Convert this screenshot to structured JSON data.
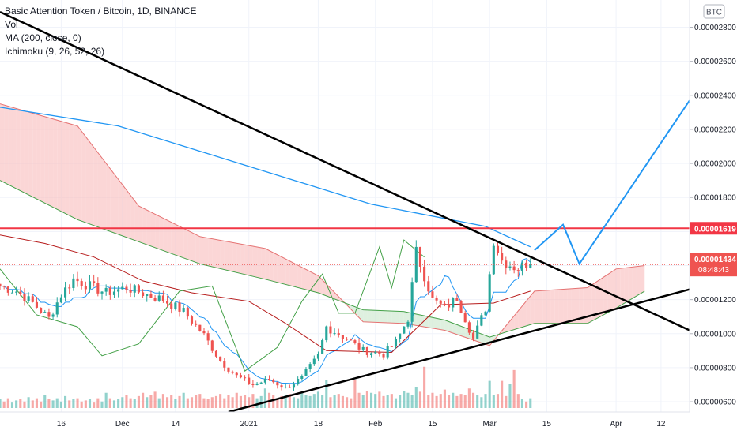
{
  "legend": {
    "symbol": "Basic Attention Token / Bitcoin, 1D, BINANCE",
    "vol": "Vol",
    "ma": "MA (200, close, 0)",
    "ichimoku": "Ichimoku (9, 26, 52, 26)"
  },
  "currency_badge": "BTC",
  "colors": {
    "up": "#26a69a",
    "down": "#ef5350",
    "ma": "#2196f3",
    "conversion": "#2196f3",
    "base": "#b71c1c",
    "lagging": "#43a047",
    "cloud_bear": "#f8bbbb",
    "cloud_bull": "#c8e6c9",
    "resistance": "#f23645",
    "trendline": "#000000",
    "projection": "#2196f3"
  },
  "price_labels": {
    "resistance": "0.00001619",
    "last_price": "0.00001434",
    "countdown": "08:48:43"
  },
  "chart_data": {
    "type": "candlestick",
    "y_axis": {
      "range": [
        5.4e-06,
        2.96e-05
      ],
      "ticks": [
        "0.00002800",
        "0.00002600",
        "0.00002400",
        "0.00002200",
        "0.00002000",
        "0.00001800",
        "0.00001600",
        "0.00001400",
        "0.00001200",
        "0.00001000",
        "0.00000800",
        "0.00000600"
      ],
      "tick_values": [
        2.8e-05,
        2.6e-05,
        2.4e-05,
        2.2e-05,
        2e-05,
        1.8e-05,
        1.6e-05,
        1.4e-05,
        1.2e-05,
        1e-05,
        8e-06,
        6e-06
      ]
    },
    "x_axis": {
      "labels": [
        "16",
        "Dec",
        "14",
        "2021",
        "18",
        "Feb",
        "15",
        "Mar",
        "15",
        "Apr",
        "12"
      ],
      "label_dates": [
        "2020-11-16",
        "2020-12-01",
        "2020-12-14",
        "2021-01-01",
        "2021-01-18",
        "2021-02-01",
        "2021-02-15",
        "2021-03-01",
        "2021-03-15",
        "2021-04-01",
        "2021-04-12"
      ],
      "start_date": "2020-11-01",
      "end_date": "2021-04-19"
    },
    "candles_start": "2020-11-01",
    "candles_end": "2021-03-11",
    "anchors": [
      [
        "2020-11-01",
        1.28e-05
      ],
      [
        "2020-11-05",
        1.25e-05
      ],
      [
        "2020-11-09",
        1.18e-05
      ],
      [
        "2020-11-13",
        1.09e-05
      ],
      [
        "2020-11-16",
        1.23e-05
      ],
      [
        "2020-11-19",
        1.32e-05
      ],
      [
        "2020-11-23",
        1.28e-05
      ],
      [
        "2020-11-27",
        1.24e-05
      ],
      [
        "2020-12-02",
        1.27e-05
      ],
      [
        "2020-12-07",
        1.23e-05
      ],
      [
        "2020-12-11",
        1.2e-05
      ],
      [
        "2020-12-16",
        1.13e-05
      ],
      [
        "2020-12-21",
        9.9e-06
      ],
      [
        "2020-12-25",
        8.4e-06
      ],
      [
        "2020-12-29",
        7.5e-06
      ],
      [
        "2021-01-02",
        7e-06
      ],
      [
        "2021-01-06",
        7.3e-06
      ],
      [
        "2021-01-10",
        6.8e-06
      ],
      [
        "2021-01-14",
        7.4e-06
      ],
      [
        "2021-01-18",
        8.7e-06
      ],
      [
        "2021-01-20",
        1.04e-05
      ],
      [
        "2021-01-25",
        9.7e-06
      ],
      [
        "2021-01-29",
        9e-06
      ],
      [
        "2021-02-03",
        8.8e-06
      ],
      [
        "2021-02-06",
        9.5e-06
      ],
      [
        "2021-02-09",
        1.09e-05
      ],
      [
        "2021-02-11",
        1.48e-05
      ],
      [
        "2021-02-15",
        1.2e-05
      ],
      [
        "2021-02-18",
        1.15e-05
      ],
      [
        "2021-02-21",
        1.21e-05
      ],
      [
        "2021-02-25",
        9.7e-06
      ],
      [
        "2021-02-28",
        1.15e-05
      ],
      [
        "2021-03-02",
        1.55e-05
      ],
      [
        "2021-03-04",
        1.43e-05
      ],
      [
        "2021-03-08",
        1.38e-05
      ],
      [
        "2021-03-11",
        1.43e-05
      ]
    ],
    "ma200": [
      [
        "2020-11-01",
        2.33e-05
      ],
      [
        "2020-11-30",
        2.22e-05
      ],
      [
        "2020-12-31",
        1.99e-05
      ],
      [
        "2021-01-31",
        1.76e-05
      ],
      [
        "2021-02-28",
        1.63e-05
      ],
      [
        "2021-03-11",
        1.51e-05
      ]
    ],
    "ichimoku": {
      "base": [
        [
          "2020-11-01",
          1.58e-05
        ],
        [
          "2020-11-12",
          1.53e-05
        ],
        [
          "2020-11-24",
          1.45e-05
        ],
        [
          "2020-12-06",
          1.31e-05
        ],
        [
          "2020-12-18",
          1.24e-05
        ],
        [
          "2021-01-01",
          1.19e-05
        ],
        [
          "2021-01-10",
          1.06e-05
        ],
        [
          "2021-01-20",
          9e-06
        ],
        [
          "2021-02-05",
          8.9e-06
        ],
        [
          "2021-02-17",
          1.17e-05
        ],
        [
          "2021-03-02",
          1.18e-05
        ],
        [
          "2021-03-11",
          1.25e-05
        ]
      ],
      "lagging": [
        [
          "2020-11-01",
          1.38e-05
        ],
        [
          "2020-11-10",
          1.11e-05
        ],
        [
          "2020-11-20",
          1.04e-05
        ],
        [
          "2020-11-26",
          8.7e-06
        ],
        [
          "2020-12-05",
          9.4e-06
        ],
        [
          "2020-12-15",
          1.25e-05
        ],
        [
          "2020-12-23",
          1.28e-05
        ],
        [
          "2020-12-31",
          7.8e-06
        ],
        [
          "2021-01-08",
          9.2e-06
        ],
        [
          "2021-01-14",
          1.19e-05
        ],
        [
          "2021-01-19",
          1.35e-05
        ],
        [
          "2021-01-23",
          1.12e-05
        ],
        [
          "2021-01-27",
          1.12e-05
        ],
        [
          "2021-02-02",
          1.51e-05
        ],
        [
          "2021-02-05",
          1.27e-05
        ],
        [
          "2021-02-08",
          1.55e-05
        ],
        [
          "2021-02-13",
          1.45e-05
        ]
      ],
      "span_a": [
        [
          "2020-11-01",
          2.35e-05
        ],
        [
          "2020-11-20",
          2.22e-05
        ],
        [
          "2020-12-05",
          1.75e-05
        ],
        [
          "2020-12-20",
          1.57e-05
        ],
        [
          "2021-01-05",
          1.5e-05
        ],
        [
          "2021-01-18",
          1.34e-05
        ],
        [
          "2021-01-29",
          1.07e-05
        ],
        [
          "2021-02-08",
          1.06e-05
        ],
        [
          "2021-02-18",
          1.02e-05
        ],
        [
          "2021-03-01",
          9.3e-06
        ],
        [
          "2021-03-12",
          1.25e-05
        ],
        [
          "2021-03-25",
          1.27e-05
        ],
        [
          "2021-04-01",
          1.38e-05
        ],
        [
          "2021-04-08",
          1.4e-05
        ]
      ],
      "span_b": [
        [
          "2020-11-01",
          1.9e-05
        ],
        [
          "2020-11-20",
          1.67e-05
        ],
        [
          "2020-12-05",
          1.54e-05
        ],
        [
          "2020-12-20",
          1.41e-05
        ],
        [
          "2021-01-05",
          1.32e-05
        ],
        [
          "2021-01-18",
          1.24e-05
        ],
        [
          "2021-01-29",
          1.14e-05
        ],
        [
          "2021-02-08",
          1.13e-05
        ],
        [
          "2021-02-18",
          1.08e-05
        ],
        [
          "2021-03-01",
          9.8e-06
        ],
        [
          "2021-03-12",
          1.06e-05
        ],
        [
          "2021-03-25",
          1.06e-05
        ],
        [
          "2021-04-01",
          1.15e-05
        ],
        [
          "2021-04-08",
          1.25e-05
        ]
      ]
    },
    "drawings": {
      "resistance_level": 1.619e-05,
      "descending_trendline": [
        [
          "2020-11-01",
          2.89e-05
        ],
        [
          "2021-04-19",
          1.02e-05
        ]
      ],
      "ascending_trendline": [
        [
          "2020-12-27",
          5.4e-06
        ],
        [
          "2021-04-19",
          1.26e-05
        ]
      ],
      "projection": [
        [
          "2021-03-12",
          1.49e-05
        ],
        [
          "2021-03-19",
          1.64e-05
        ],
        [
          "2021-03-23",
          1.41e-05
        ],
        [
          "2021-04-19",
          2.37e-05
        ]
      ]
    },
    "volume": {
      "range": [
        0,
        40
      ],
      "values_relative": [
        8,
        6,
        9,
        5,
        7,
        8,
        6,
        10,
        7,
        9,
        6,
        12,
        8,
        7,
        9,
        6,
        11,
        7,
        8,
        9,
        6,
        7,
        8,
        5,
        9,
        6,
        14,
        9,
        7,
        8,
        10,
        12,
        9,
        8,
        11,
        14,
        10,
        12,
        15,
        9,
        13,
        10,
        12,
        8,
        11,
        14,
        9,
        10,
        12,
        13,
        9,
        8,
        10,
        11,
        13,
        9,
        12,
        10,
        14,
        11,
        12,
        10,
        13,
        9,
        11,
        18,
        14,
        12,
        9,
        11,
        12,
        13,
        10,
        9,
        14,
        12,
        11,
        13,
        15,
        12,
        16,
        10,
        12,
        13,
        11,
        10,
        9,
        26,
        14,
        12,
        16,
        14,
        13,
        15,
        11,
        12,
        13,
        9,
        12,
        16,
        14,
        12,
        19,
        15,
        13,
        12,
        14,
        11,
        13,
        17,
        12,
        14,
        11,
        13,
        12,
        18,
        14,
        12,
        10,
        13,
        25,
        12,
        13,
        14,
        11,
        22,
        12,
        13
      ],
      "values_up_spike": [
        [
          80,
          26
        ],
        [
          104,
          38
        ],
        [
          123,
          25
        ],
        [
          126,
          35
        ],
        [
          131,
          28
        ]
      ]
    }
  }
}
